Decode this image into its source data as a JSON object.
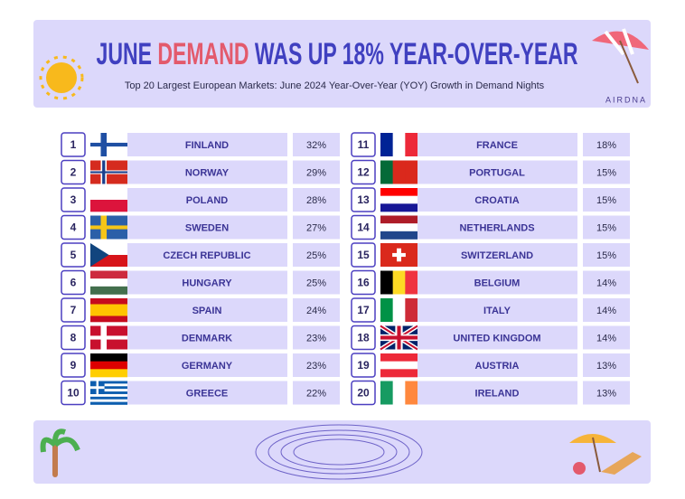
{
  "header": {
    "title_parts": [
      "JUNE",
      "DEMAND",
      "WAS UP 18% YEAR-OVER-YEAR"
    ],
    "subtitle": "Top 20 Largest European Markets: June 2024 Year-Over-Year (YOY) Growth in Demand Nights",
    "brand": "AIRDNA"
  },
  "table": {
    "rows": [
      {
        "rank": 1,
        "country": "FINLAND",
        "growth": "32%"
      },
      {
        "rank": 2,
        "country": "NORWAY",
        "growth": "29%"
      },
      {
        "rank": 3,
        "country": "POLAND",
        "growth": "28%"
      },
      {
        "rank": 4,
        "country": "SWEDEN",
        "growth": "27%"
      },
      {
        "rank": 5,
        "country": "CZECH REPUBLIC",
        "growth": "25%"
      },
      {
        "rank": 6,
        "country": "HUNGARY",
        "growth": "25%"
      },
      {
        "rank": 7,
        "country": "SPAIN",
        "growth": "24%"
      },
      {
        "rank": 8,
        "country": "DENMARK",
        "growth": "23%"
      },
      {
        "rank": 9,
        "country": "GERMANY",
        "growth": "23%"
      },
      {
        "rank": 10,
        "country": "GREECE",
        "growth": "22%"
      },
      {
        "rank": 11,
        "country": "FRANCE",
        "growth": "18%"
      },
      {
        "rank": 12,
        "country": "PORTUGAL",
        "growth": "15%"
      },
      {
        "rank": 13,
        "country": "CROATIA",
        "growth": "15%"
      },
      {
        "rank": 14,
        "country": "NETHERLANDS",
        "growth": "15%"
      },
      {
        "rank": 15,
        "country": "SWITZERLAND",
        "growth": "15%"
      },
      {
        "rank": 16,
        "country": "BELGIUM",
        "growth": "14%"
      },
      {
        "rank": 17,
        "country": "ITALY",
        "growth": "14%"
      },
      {
        "rank": 18,
        "country": "UNITED KINGDOM",
        "growth": "14%"
      },
      {
        "rank": 19,
        "country": "AUSTRIA",
        "growth": "13%"
      },
      {
        "rank": 20,
        "country": "IRELAND",
        "growth": "13%"
      }
    ]
  }
}
